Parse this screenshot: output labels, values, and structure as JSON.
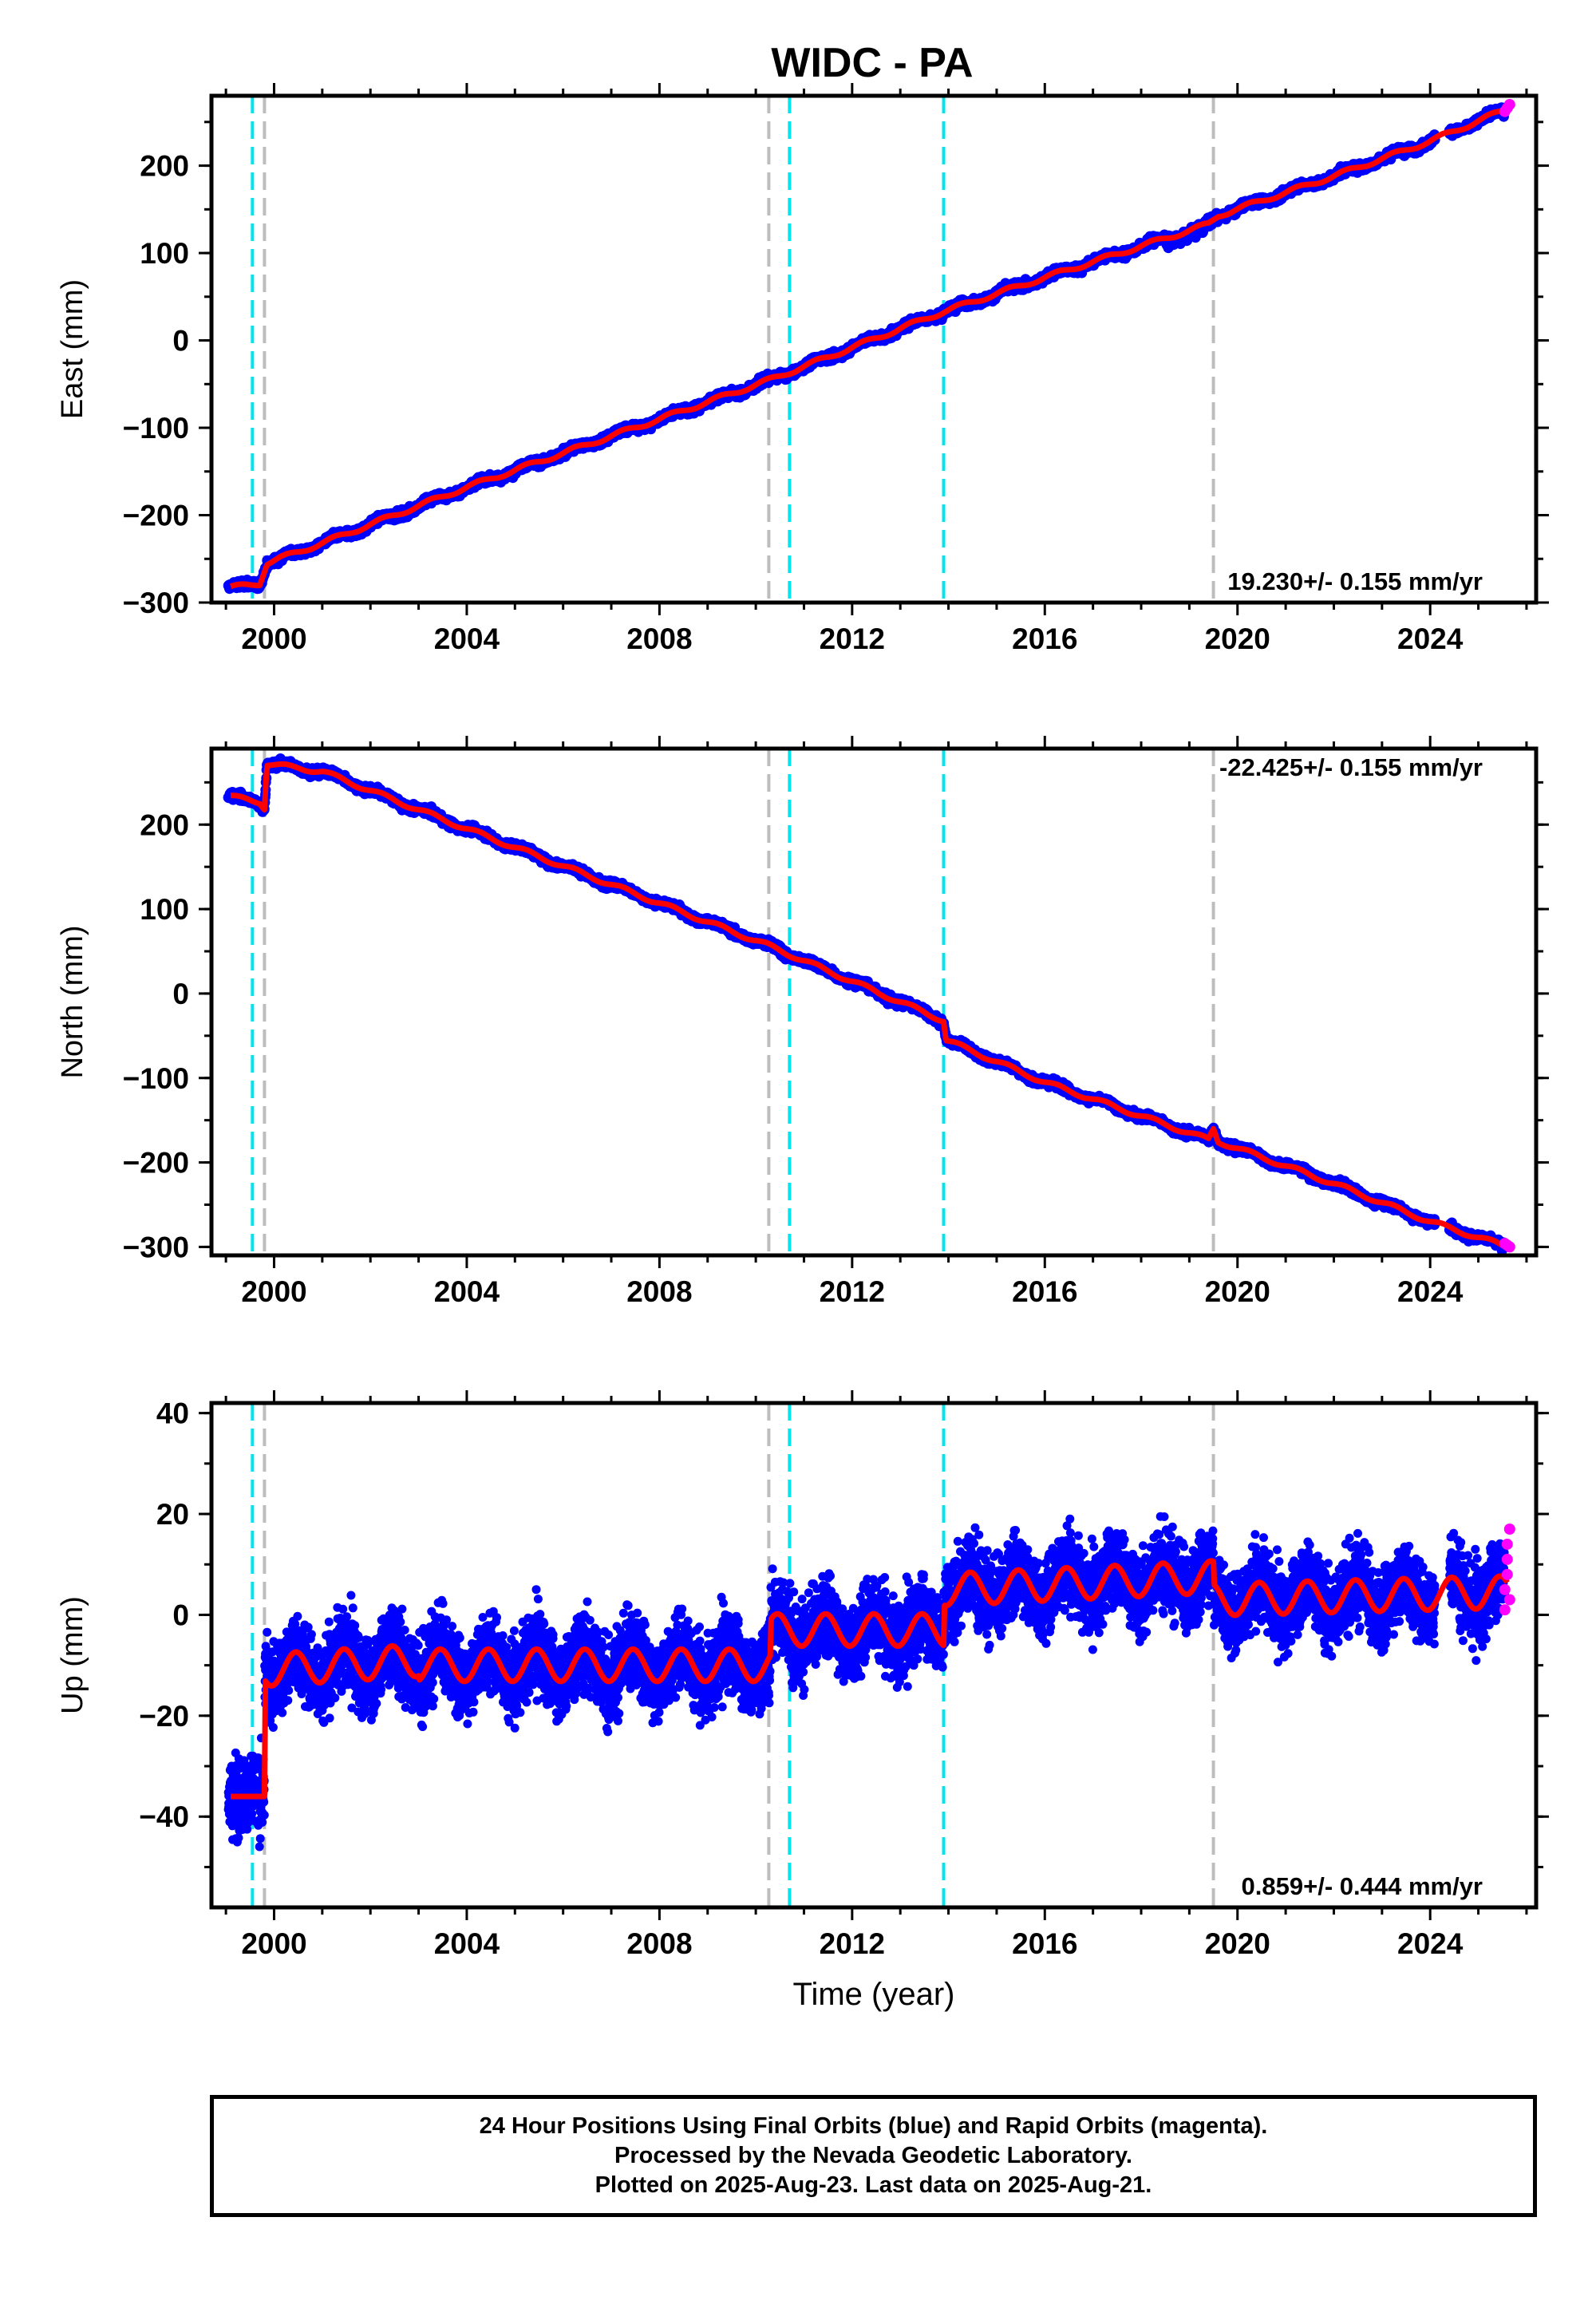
{
  "title": "WIDC - PA",
  "colors": {
    "final_orbits": "#0000ff",
    "rapid_orbits": "#ff00ff",
    "model": "#ff0000",
    "cyan_event": "#00e5ee",
    "gray_event": "#bdbdbd"
  },
  "chart_data": [
    {
      "type": "scatter",
      "component": "East",
      "ylabel": "East (mm)",
      "xlabel": "",
      "xlim": [
        1998.7,
        2026.2
      ],
      "ylim": [
        -300,
        280
      ],
      "xticks": [
        "2000",
        "2004",
        "2008",
        "2012",
        "2016",
        "2020",
        "2024"
      ],
      "yticks": [
        "−300",
        "−200",
        "−100",
        "0",
        "100",
        "200"
      ],
      "rate_label": "19.230+/- 0.155 mm/yr",
      "rate_position": "bottom-right",
      "trend": {
        "x": [
          1999.1,
          1999.7,
          1999.85,
          2001,
          2004,
          2008,
          2010.3,
          2013.9,
          2016,
          2019.4,
          2019.6,
          2022,
          2024,
          2025.6
        ],
        "y": [
          -283,
          -278,
          -255,
          -232,
          -168,
          -90,
          -45,
          33,
          72,
          133,
          143,
          188,
          228,
          265
        ]
      },
      "rapid_points": {
        "x": [
          2025.55,
          2025.6,
          2025.65
        ],
        "y": [
          262,
          266,
          270
        ]
      }
    },
    {
      "type": "scatter",
      "component": "North",
      "ylabel": "North (mm)",
      "xlabel": "",
      "xlim": [
        1998.7,
        2026.2
      ],
      "ylim": [
        -310,
        290
      ],
      "xticks": [
        "2000",
        "2004",
        "2008",
        "2012",
        "2016",
        "2020",
        "2024"
      ],
      "yticks": [
        "−300",
        "−200",
        "−100",
        "0",
        "100",
        "200"
      ],
      "rate_label": "-22.425+/- 0.155 mm/yr",
      "rate_position": "top-right",
      "trend": {
        "x": [
          1999.1,
          1999.7,
          1999.8,
          1999.85,
          2001,
          2004,
          2008,
          2010.3,
          2013.9,
          2013.95,
          2016,
          2019.4,
          2019.5,
          2019.6,
          2022,
          2024,
          2025.6
        ],
        "y": [
          233,
          227,
          220,
          272,
          263,
          195,
          107,
          56,
          -32,
          -55,
          -105,
          -173,
          -160,
          -175,
          -225,
          -270,
          -300
        ]
      },
      "rapid_points": {
        "x": [
          2025.55,
          2025.6,
          2025.65
        ],
        "y": [
          -296,
          -298,
          -300
        ]
      }
    },
    {
      "type": "scatter",
      "component": "Up",
      "ylabel": "Up (mm)",
      "xlabel": "Time (year)",
      "xlim": [
        1998.7,
        2026.2
      ],
      "ylim": [
        -58,
        42
      ],
      "xticks": [
        "2000",
        "2004",
        "2008",
        "2012",
        "2016",
        "2020",
        "2024"
      ],
      "yticks": [
        "−40",
        "−20",
        "0",
        "20",
        "40"
      ],
      "rate_label": "0.859+/- 0.444 mm/yr",
      "rate_position": "bottom-right",
      "trend_note": "seasonal annual cycle of ~±3 mm superimposed on offsets",
      "trend_levels": [
        {
          "from": 1999.1,
          "to": 1999.8,
          "level": -36
        },
        {
          "from": 1999.8,
          "to": 2010.3,
          "level": -10
        },
        {
          "from": 2010.3,
          "to": 2013.9,
          "level": -3
        },
        {
          "from": 2013.9,
          "to": 2019.5,
          "level": 5
        },
        {
          "from": 2019.5,
          "to": 2025.6,
          "level": 3
        }
      ],
      "rapid_points": {
        "x": [
          2025.55,
          2025.55,
          2025.6,
          2025.6,
          2025.6,
          2025.65,
          2025.65
        ],
        "y": [
          1,
          5,
          8,
          11,
          14,
          3,
          17
        ]
      }
    }
  ],
  "events": {
    "cyan": [
      1999.55,
      2010.7,
      2013.9
    ],
    "gray": [
      1999.8,
      2010.27,
      2019.5
    ]
  },
  "footer": {
    "line1": "24 Hour Positions Using Final Orbits (blue) and Rapid Orbits (magenta).",
    "line2": "Processed by the Nevada Geodetic Laboratory.",
    "line3": "Plotted on 2025-Aug-23. Last data on 2025-Aug-21."
  }
}
